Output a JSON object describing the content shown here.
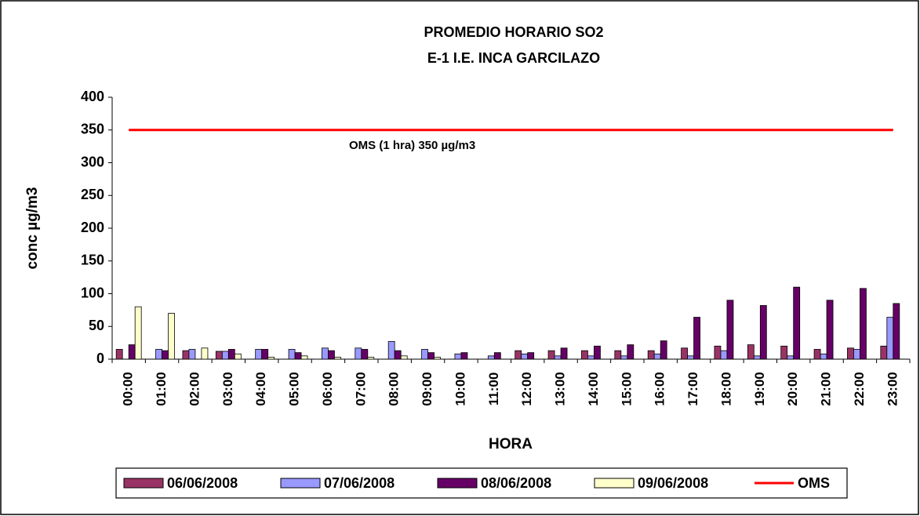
{
  "chart_data": {
    "type": "bar",
    "title": "PROMEDIO HORARIO SO2",
    "subtitle": "E-1 I.E. INCA GARCILAZO",
    "x_label": "HORA",
    "y_label": "conc µg/m3",
    "annotation": "OMS (1 hra) 350 µg/m3",
    "categories": [
      "00:00",
      "01:00",
      "02:00",
      "03:00",
      "04:00",
      "05:00",
      "06:00",
      "07:00",
      "08:00",
      "09:00",
      "10:00",
      "11:00",
      "12:00",
      "13:00",
      "14:00",
      "15:00",
      "16:00",
      "17:00",
      "18:00",
      "19:00",
      "20:00",
      "21:00",
      "22:00",
      "23:00"
    ],
    "series": [
      {
        "name": "06/06/2008",
        "color": "#993366",
        "type": "bar",
        "values": [
          15,
          null,
          13,
          12,
          null,
          null,
          null,
          null,
          null,
          null,
          null,
          null,
          13,
          13,
          13,
          13,
          13,
          17,
          20,
          22,
          20,
          15,
          17,
          20
        ]
      },
      {
        "name": "07/06/2008",
        "color": "#9999ff",
        "type": "bar",
        "values": [
          null,
          15,
          15,
          12,
          15,
          15,
          17,
          17,
          27,
          15,
          8,
          5,
          8,
          5,
          5,
          5,
          8,
          5,
          13,
          5,
          5,
          8,
          15,
          64
        ]
      },
      {
        "name": "08/06/2008",
        "color": "#660066",
        "type": "bar",
        "values": [
          22,
          13,
          null,
          15,
          15,
          10,
          13,
          15,
          13,
          10,
          10,
          10,
          10,
          17,
          20,
          22,
          28,
          64,
          90,
          82,
          110,
          90,
          108,
          85
        ]
      },
      {
        "name": "09/06/2008",
        "color": "#ffffcc",
        "type": "bar",
        "values": [
          80,
          70,
          17,
          8,
          3,
          5,
          3,
          3,
          5,
          3,
          null,
          null,
          null,
          null,
          null,
          null,
          null,
          null,
          null,
          null,
          null,
          null,
          null,
          null
        ]
      },
      {
        "name": "OMS",
        "color": "#ff0000",
        "type": "line",
        "values": [
          350,
          350,
          350,
          350,
          350,
          350,
          350,
          350,
          350,
          350,
          350,
          350,
          350,
          350,
          350,
          350,
          350,
          350,
          350,
          350,
          350,
          350,
          350,
          350
        ]
      }
    ],
    "ylim": [
      0,
      400
    ],
    "yticks": [
      0,
      50,
      100,
      150,
      200,
      250,
      300,
      350,
      400
    ],
    "legend": "bottom"
  }
}
